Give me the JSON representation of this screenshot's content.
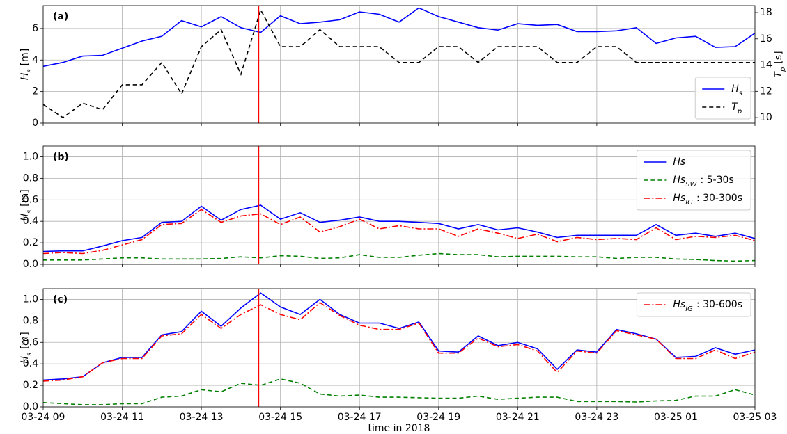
{
  "chart_data": [
    {
      "type": "line",
      "panel_label": "(a)",
      "ylabel": "H",
      "ylabel_sub": "s",
      "ylabel_suffix": "[m]",
      "y2label": "T",
      "y2label_sub": "p",
      "y2label_suffix": "[s]",
      "x": [
        9,
        9.5,
        10,
        10.5,
        11,
        11.5,
        12,
        12.5,
        13,
        13.5,
        14,
        14.5,
        15,
        15.5,
        16,
        16.5,
        17,
        17.5,
        18,
        18.5,
        19,
        19.5,
        20,
        20.5,
        21,
        21.5,
        22,
        22.5,
        23,
        23.5,
        24,
        24.5,
        25,
        25.5,
        26,
        26.5,
        27
      ],
      "xlim": [
        9,
        27
      ],
      "xticks": [
        9,
        11,
        13,
        15,
        17,
        19,
        21,
        23,
        25,
        27
      ],
      "ylim": [
        0,
        7.45
      ],
      "yticks": [
        0,
        2,
        4,
        6
      ],
      "y2lim": [
        9.58,
        18.53
      ],
      "y2ticks": [
        10,
        12,
        14,
        16,
        18
      ],
      "grid": true,
      "legend": "lower right",
      "vline": 14.45,
      "vline_color": "#ff0000",
      "series": [
        {
          "name": "H",
          "name_sub": "s",
          "color": "#0000ff",
          "dash": "solid",
          "values": [
            3.6,
            3.85,
            4.25,
            4.3,
            4.75,
            5.2,
            5.5,
            6.5,
            6.1,
            6.75,
            6.05,
            5.75,
            6.8,
            6.3,
            6.4,
            6.55,
            7.05,
            6.9,
            6.4,
            7.3,
            6.75,
            6.4,
            6.05,
            5.9,
            6.3,
            6.2,
            6.25,
            5.8,
            5.8,
            5.85,
            6.05,
            5.05,
            5.4,
            5.5,
            4.8,
            4.85,
            5.7
          ]
        },
        {
          "name": "T",
          "name_sub": "p",
          "color": "#000000",
          "dash": "dashed",
          "axis": "y2",
          "values": [
            11.0,
            10.0,
            11.1,
            10.6,
            12.5,
            12.5,
            14.2,
            11.8,
            15.4,
            16.7,
            13.3,
            18.2,
            15.4,
            15.4,
            16.7,
            15.4,
            15.4,
            15.4,
            14.2,
            14.2,
            15.4,
            15.4,
            14.2,
            15.4,
            15.4,
            15.4,
            14.2,
            14.2,
            15.4,
            15.4,
            14.2,
            14.2,
            14.2,
            14.2,
            14.2,
            14.2,
            14.2
          ]
        }
      ]
    },
    {
      "type": "line",
      "panel_label": "(b)",
      "ylabel": "H",
      "ylabel_sub": "s",
      "ylabel_suffix": "[m]",
      "x": [
        9,
        9.5,
        10,
        10.5,
        11,
        11.5,
        12,
        12.5,
        13,
        13.5,
        14,
        14.5,
        15,
        15.5,
        16,
        16.5,
        17,
        17.5,
        18,
        18.5,
        19,
        19.5,
        20,
        20.5,
        21,
        21.5,
        22,
        22.5,
        23,
        23.5,
        24,
        24.5,
        25,
        25.5,
        26,
        26.5,
        27
      ],
      "xlim": [
        9,
        27
      ],
      "xticks": [
        9,
        11,
        13,
        15,
        17,
        19,
        21,
        23,
        25,
        27
      ],
      "ylim": [
        0,
        1.1
      ],
      "yticks": [
        {
          "value": 0,
          "label": "0.0"
        },
        0.2,
        0.4,
        0.6,
        0.8,
        {
          "value": 1,
          "label": "1.0"
        }
      ],
      "grid": true,
      "legend": "upper right",
      "vline": 14.45,
      "vline_color": "#ff0000",
      "series": [
        {
          "name": "Hs",
          "color": "#0000ff",
          "dash": "solid",
          "values": [
            0.12,
            0.125,
            0.125,
            0.17,
            0.22,
            0.25,
            0.39,
            0.4,
            0.54,
            0.41,
            0.51,
            0.55,
            0.42,
            0.48,
            0.39,
            0.41,
            0.44,
            0.4,
            0.4,
            0.39,
            0.38,
            0.33,
            0.37,
            0.32,
            0.34,
            0.3,
            0.25,
            0.27,
            0.27,
            0.27,
            0.27,
            0.37,
            0.27,
            0.29,
            0.26,
            0.29,
            0.24
          ]
        },
        {
          "name": "Hs",
          "name_sub": "SW",
          "name_suffix": ": 5-30s",
          "color": "#008000",
          "dash": "dashed",
          "values": [
            0.04,
            0.04,
            0.04,
            0.05,
            0.06,
            0.06,
            0.05,
            0.05,
            0.05,
            0.055,
            0.07,
            0.06,
            0.08,
            0.075,
            0.055,
            0.06,
            0.09,
            0.065,
            0.065,
            0.085,
            0.1,
            0.09,
            0.09,
            0.07,
            0.075,
            0.075,
            0.075,
            0.07,
            0.07,
            0.055,
            0.065,
            0.065,
            0.05,
            0.045,
            0.035,
            0.03,
            0.035
          ]
        },
        {
          "name": "Hs",
          "name_sub": "IG",
          "name_suffix": ": 30-300s",
          "color": "#ff0000",
          "dash": "dashdot",
          "values": [
            0.1,
            0.11,
            0.1,
            0.13,
            0.18,
            0.23,
            0.37,
            0.38,
            0.51,
            0.39,
            0.45,
            0.47,
            0.37,
            0.44,
            0.3,
            0.35,
            0.42,
            0.33,
            0.36,
            0.33,
            0.33,
            0.26,
            0.33,
            0.29,
            0.24,
            0.28,
            0.21,
            0.25,
            0.23,
            0.24,
            0.23,
            0.34,
            0.23,
            0.26,
            0.25,
            0.27,
            0.22
          ]
        }
      ]
    },
    {
      "type": "line",
      "panel_label": "(c)",
      "ylabel": "H",
      "ylabel_sub": "s",
      "ylabel_suffix": "[m]",
      "xlabel": "time in 2018",
      "x": [
        9,
        9.5,
        10,
        10.5,
        11,
        11.5,
        12,
        12.5,
        13,
        13.5,
        14,
        14.5,
        15,
        15.5,
        16,
        16.5,
        17,
        17.5,
        18,
        18.5,
        19,
        19.5,
        20,
        20.5,
        21,
        21.5,
        22,
        22.5,
        23,
        23.5,
        24,
        24.5,
        25,
        25.5,
        26,
        26.5,
        27
      ],
      "xlim": [
        9,
        27
      ],
      "xticks": [
        {
          "value": 9,
          "label": "03-24 09"
        },
        {
          "value": 11,
          "label": "03-24 11"
        },
        {
          "value": 13,
          "label": "03-24 13"
        },
        {
          "value": 15,
          "label": "03-24 15"
        },
        {
          "value": 17,
          "label": "03-24 17"
        },
        {
          "value": 19,
          "label": "03-24 19"
        },
        {
          "value": 21,
          "label": "03-24 21"
        },
        {
          "value": 23,
          "label": "03-24 23"
        },
        {
          "value": 25,
          "label": "03-25 01"
        },
        {
          "value": 27,
          "label": "03-25 03"
        }
      ],
      "ylim": [
        0,
        1.1
      ],
      "yticks": [
        {
          "value": 0,
          "label": "0.0"
        },
        0.2,
        0.4,
        0.6,
        0.8,
        {
          "value": 1,
          "label": "1.0"
        }
      ],
      "grid": true,
      "legend": "upper right",
      "vline": 14.45,
      "vline_color": "#ff0000",
      "series": [
        {
          "color": "#0000ff",
          "dash": "solid",
          "values": [
            0.25,
            0.26,
            0.28,
            0.41,
            0.46,
            0.46,
            0.67,
            0.7,
            0.89,
            0.75,
            0.92,
            1.06,
            0.93,
            0.86,
            1.0,
            0.86,
            0.78,
            0.78,
            0.73,
            0.79,
            0.52,
            0.51,
            0.66,
            0.57,
            0.6,
            0.54,
            0.35,
            0.53,
            0.51,
            0.72,
            0.68,
            0.63,
            0.46,
            0.47,
            0.55,
            0.49,
            0.53
          ]
        },
        {
          "color": "#008000",
          "dash": "dashed",
          "values": [
            0.04,
            0.03,
            0.02,
            0.02,
            0.03,
            0.03,
            0.09,
            0.1,
            0.16,
            0.14,
            0.22,
            0.2,
            0.26,
            0.22,
            0.12,
            0.1,
            0.11,
            0.09,
            0.09,
            0.085,
            0.08,
            0.08,
            0.1,
            0.07,
            0.08,
            0.09,
            0.09,
            0.05,
            0.05,
            0.05,
            0.045,
            0.055,
            0.06,
            0.1,
            0.1,
            0.16,
            0.11
          ]
        },
        {
          "name": "Hs",
          "name_sub": "IG",
          "name_suffix": ": 30-600s",
          "color": "#ff0000",
          "dash": "dashdot",
          "values": [
            0.24,
            0.25,
            0.28,
            0.41,
            0.45,
            0.45,
            0.66,
            0.68,
            0.86,
            0.73,
            0.86,
            0.95,
            0.86,
            0.81,
            0.97,
            0.85,
            0.76,
            0.72,
            0.72,
            0.78,
            0.5,
            0.5,
            0.64,
            0.56,
            0.58,
            0.52,
            0.32,
            0.52,
            0.5,
            0.71,
            0.67,
            0.63,
            0.45,
            0.45,
            0.53,
            0.45,
            0.51
          ]
        }
      ]
    }
  ]
}
